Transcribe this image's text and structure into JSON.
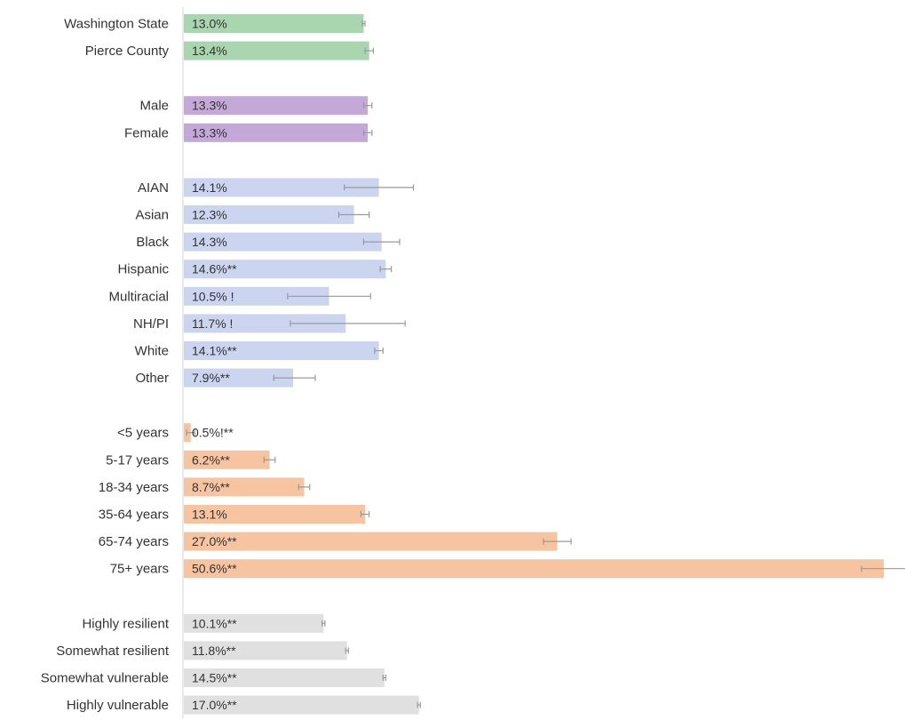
{
  "chart_data": {
    "type": "bar",
    "orientation": "horizontal",
    "grid": false,
    "legend": "none",
    "x_max": 50.6,
    "groups": [
      {
        "name": "",
        "color": "#a9d6ae",
        "rows": [
          {
            "category": "Washington State",
            "value": 13.0,
            "ci": [
              12.9,
              13.1
            ],
            "label": "13.0%"
          },
          {
            "category": "Pierce County",
            "value": 13.4,
            "ci": [
              13.1,
              13.7
            ],
            "label": "13.4%"
          }
        ]
      },
      {
        "name": "",
        "color": "#c4a8d8",
        "rows": [
          {
            "category": "Male",
            "value": 13.3,
            "ci": [
              13.0,
              13.6
            ],
            "label": "13.3%"
          },
          {
            "category": "Female",
            "value": 13.3,
            "ci": [
              13.0,
              13.6
            ],
            "label": "13.3%"
          }
        ]
      },
      {
        "name": "",
        "color": "#cbd5ef",
        "rows": [
          {
            "category": "AIAN",
            "value": 14.1,
            "ci": [
              11.6,
              16.6
            ],
            "label": "14.1%"
          },
          {
            "category": "Asian",
            "value": 12.3,
            "ci": [
              11.2,
              13.4
            ],
            "label": "12.3%"
          },
          {
            "category": "Black",
            "value": 14.3,
            "ci": [
              13.0,
              15.6
            ],
            "label": "14.3%"
          },
          {
            "category": "Hispanic",
            "value": 14.6,
            "ci": [
              14.2,
              15.0
            ],
            "label": "14.6%**"
          },
          {
            "category": "Multiracial",
            "value": 10.5,
            "ci": [
              7.5,
              13.5
            ],
            "label": "10.5% !"
          },
          {
            "category": "NH/PI",
            "value": 11.7,
            "ci": [
              7.7,
              16.0
            ],
            "label": "11.7% !"
          },
          {
            "category": "White",
            "value": 14.1,
            "ci": [
              13.8,
              14.4
            ],
            "label": "14.1%**"
          },
          {
            "category": "Other",
            "value": 7.9,
            "ci": [
              6.5,
              9.5
            ],
            "label": "7.9%**"
          }
        ]
      },
      {
        "name": "",
        "color": "#f6c4a0",
        "rows": [
          {
            "category": "<5 years",
            "value": 0.5,
            "ci": [
              0.2,
              0.8
            ],
            "label": "0.5%!**"
          },
          {
            "category": "5-17 years",
            "value": 6.2,
            "ci": [
              5.8,
              6.6
            ],
            "label": "6.2%**"
          },
          {
            "category": "18-34 years",
            "value": 8.7,
            "ci": [
              8.3,
              9.1
            ],
            "label": "8.7%**"
          },
          {
            "category": "35-64 years",
            "value": 13.1,
            "ci": [
              12.8,
              13.4
            ],
            "label": "13.1%"
          },
          {
            "category": "65-74 years",
            "value": 27.0,
            "ci": [
              26.0,
              28.0
            ],
            "label": "27.0%**"
          },
          {
            "category": "75+ years",
            "value": 50.6,
            "ci": [
              49.0,
              52.2
            ],
            "label": "50.6%**"
          }
        ]
      },
      {
        "name": "",
        "color": "#e0e0e0",
        "rows": [
          {
            "category": "Highly resilient",
            "value": 10.1,
            "ci": [
              10.0,
              10.2
            ],
            "label": "10.1%**"
          },
          {
            "category": "Somewhat resilient",
            "value": 11.8,
            "ci": [
              11.7,
              11.9
            ],
            "label": "11.8%**"
          },
          {
            "category": "Somewhat vulnerable",
            "value": 14.5,
            "ci": [
              14.4,
              14.6
            ],
            "label": "14.5%**"
          },
          {
            "category": "Highly vulnerable",
            "value": 17.0,
            "ci": [
              16.9,
              17.1
            ],
            "label": "17.0%**"
          }
        ]
      }
    ]
  }
}
